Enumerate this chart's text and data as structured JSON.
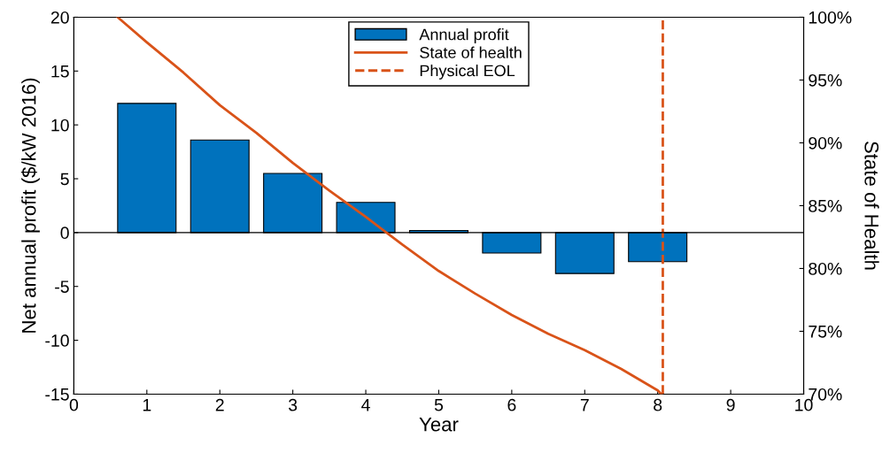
{
  "chart_data": {
    "type": "bar",
    "xlabel": "Year",
    "ylabel": "Net annual profit ($/kW 2016)",
    "y2label": "State of Health",
    "x": [
      1,
      2,
      3,
      4,
      5,
      6,
      7,
      8
    ],
    "xlim": [
      0,
      10
    ],
    "xticks": [
      0,
      1,
      2,
      3,
      4,
      5,
      6,
      7,
      8,
      9,
      10
    ],
    "ylim": [
      -15,
      20
    ],
    "yticks": [
      -15,
      -10,
      -5,
      0,
      5,
      10,
      15,
      20
    ],
    "y2lim": [
      70,
      100
    ],
    "y2ticks": [
      {
        "value": 70,
        "label": "70%"
      },
      {
        "value": 75,
        "label": "75%"
      },
      {
        "value": 80,
        "label": "80%"
      },
      {
        "value": 85,
        "label": "85%"
      },
      {
        "value": 90,
        "label": "90%"
      },
      {
        "value": 95,
        "label": "95%"
      },
      {
        "value": 100,
        "label": "100%"
      }
    ],
    "series": [
      {
        "name": "Annual profit",
        "color": "#0072bd",
        "values": [
          12.0,
          8.6,
          5.5,
          2.8,
          0.2,
          -1.9,
          -3.8,
          -2.7
        ]
      },
      {
        "name": "State of health",
        "type": "line",
        "axis": "y2",
        "color": "#d95319",
        "x": [
          0.6,
          1,
          1.5,
          2,
          2.5,
          3,
          3.5,
          4,
          4.5,
          5,
          5.5,
          6,
          6.5,
          7,
          7.5,
          8,
          8.05
        ],
        "values": [
          100,
          98.0,
          95.6,
          93.0,
          90.8,
          88.4,
          86.2,
          84.1,
          81.9,
          79.8,
          78.0,
          76.3,
          74.8,
          73.5,
          72.0,
          70.3,
          70
        ]
      },
      {
        "name": "Physical EOL",
        "type": "line",
        "line_style": "dashed",
        "color": "#d95319",
        "x": [
          8.07,
          8.07
        ],
        "values": [
          -15,
          20
        ]
      }
    ],
    "ref_lines": [
      {
        "axis": "y",
        "value": 0,
        "color": "#000000",
        "line_style": "solid"
      }
    ],
    "legend": "top"
  }
}
